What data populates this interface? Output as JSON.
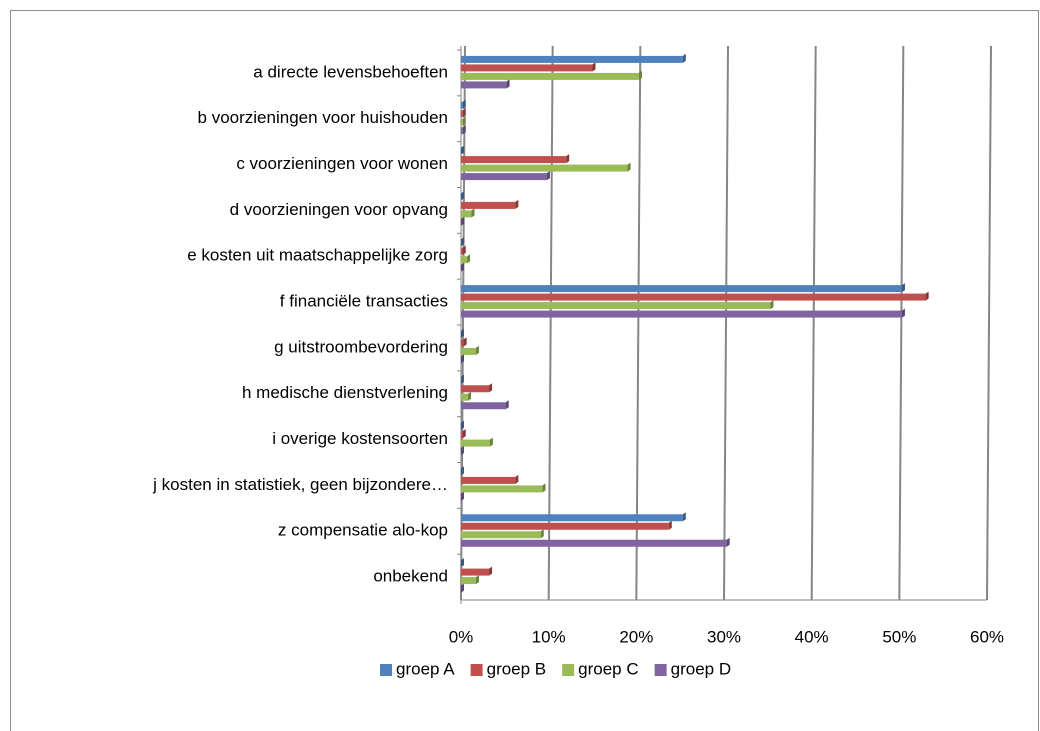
{
  "chart_data": {
    "type": "bar",
    "orientation": "horizontal",
    "categories": [
      "a directe levensbehoeften",
      "b voorzieningen voor huishouden",
      "c voorzieningen voor wonen",
      "d voorzieningen voor opvang",
      "e kosten uit maatschappelijke zorg",
      "f financiële transacties",
      "g uitstroombevordering",
      "h medische dienstverlening",
      "i overige kostensoorten",
      "j kosten in statistiek, geen bijzondere…",
      "z compensatie alo-kop",
      "onbekend"
    ],
    "series": [
      {
        "name": "groep A",
        "color": "#4f81bd",
        "values": [
          25.3,
          0.2,
          0,
          0,
          0,
          50.3,
          0,
          0,
          0,
          0,
          25.3,
          0
        ]
      },
      {
        "name": "groep B",
        "color": "#c0504d",
        "values": [
          15,
          0.2,
          12,
          6.2,
          0.2,
          53,
          0.3,
          3.2,
          0.2,
          6.2,
          23.7,
          3.2
        ]
      },
      {
        "name": "groep C",
        "color": "#9bbb59",
        "values": [
          20.3,
          0.2,
          19,
          1.2,
          0.7,
          35.3,
          1.7,
          0.8,
          3.3,
          9.3,
          9.1,
          1.7
        ]
      },
      {
        "name": "groep D",
        "color": "#8064a2",
        "values": [
          5.2,
          0.2,
          9.8,
          0,
          0,
          50.3,
          0,
          5.1,
          0,
          0,
          30.3,
          0
        ]
      }
    ],
    "xlim": [
      0,
      60
    ],
    "xticks": [
      {
        "value": 0,
        "label": "0%"
      },
      {
        "value": 10,
        "label": "10%"
      },
      {
        "value": 20,
        "label": "20%"
      },
      {
        "value": 30,
        "label": "30%"
      },
      {
        "value": 40,
        "label": "40%"
      },
      {
        "value": 50,
        "label": "50%"
      },
      {
        "value": 60,
        "label": "60%"
      }
    ],
    "grid": true,
    "legend": "bottom"
  }
}
